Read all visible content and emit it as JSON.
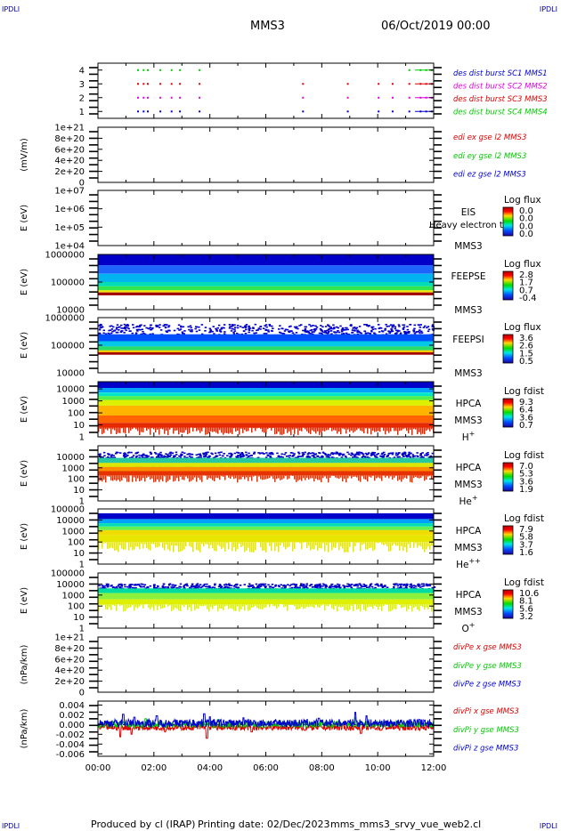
{
  "header": {
    "corner_tl": "IPDLI",
    "corner_tr": "IPDLI",
    "corner_bl": "IPDLI",
    "corner_br": "IPDLI",
    "spacecraft": "MMS3",
    "date": "06/Oct/2019 00:00"
  },
  "footer": {
    "produced": "Produced by cl (IRAP)",
    "printing": "Printing date: 02/Dec/2023",
    "file": "mms_mms3_srvy_vue_web2.cl"
  },
  "colors": {
    "red": "#e00000",
    "green": "#00cc00",
    "blue": "#0000d0",
    "magenta": "#e000e0",
    "dark_red": "#a00000"
  },
  "chart_data": {
    "x_axis": {
      "ticks": [
        "00:00",
        "02:00",
        "04:00",
        "06:00",
        "08:00",
        "10:00",
        "12:00"
      ],
      "range": [
        "00:00",
        "12:00"
      ]
    },
    "panels": [
      {
        "id": "burst",
        "type": "scatter",
        "ylabel": "",
        "yticks": [
          "4",
          "3",
          "2",
          "1"
        ],
        "ylim": [
          0.5,
          4.5
        ],
        "legend": [
          {
            "text": "des dist burst SC1 MMS1",
            "color": "#0000d0"
          },
          {
            "text": "des dist burst SC2 MMS2",
            "color": "#e000e0"
          },
          {
            "text": "des dist burst SC3 MMS3",
            "color": "#e00000"
          },
          {
            "text": "des dist burst SC4 MMS4",
            "color": "#00cc00"
          }
        ],
        "series": [
          {
            "level": 4,
            "color": "#00cc00",
            "times": [
              1.4,
              1.6,
              1.75,
              2.2,
              2.6,
              2.9,
              3.6,
              11.1,
              11.5,
              11.7,
              11.9
            ]
          },
          {
            "level": 3,
            "color": "#e00000",
            "times": [
              1.4,
              1.6,
              1.75,
              2.2,
              2.6,
              2.9,
              3.6,
              7.3,
              8.9,
              10.0,
              10.5,
              11.1,
              11.5,
              11.7,
              11.9
            ]
          },
          {
            "level": 2,
            "color": "#e000e0",
            "times": [
              1.4,
              1.6,
              1.75,
              2.2,
              2.6,
              2.9,
              3.6,
              7.3,
              8.9,
              10.0,
              10.5,
              11.1,
              11.5,
              11.7,
              11.9
            ]
          },
          {
            "level": 1,
            "color": "#0000d0",
            "times": [
              1.4,
              1.6,
              1.75,
              2.2,
              2.6,
              2.9,
              3.6,
              7.3,
              8.9,
              10.0,
              10.5,
              11.1,
              11.5,
              11.7,
              11.9
            ]
          }
        ]
      },
      {
        "id": "edi",
        "type": "line",
        "ylabel": "(mV/m)",
        "yticks": [
          "1e+21",
          "8e+20",
          "6e+20",
          "4e+20",
          "2e+20",
          "0"
        ],
        "ylim": [
          0,
          1e+21
        ],
        "legend": [
          {
            "text": "edi ex gse l2 MMS3",
            "color": "#e00000"
          },
          {
            "text": "edi ey gse l2 MMS3",
            "color": "#00cc00"
          },
          {
            "text": "edi ez gse l2 MMS3",
            "color": "#0000d0"
          }
        ]
      },
      {
        "id": "eis",
        "type": "heatmap",
        "ylabel": "E (eV)",
        "yticks": [
          "1e+07",
          "1e+06",
          "1e+05",
          "1e+04"
        ],
        "ylim": [
          10000,
          10000000
        ],
        "log": true,
        "label_lines": [
          "EIS",
          "",
          "MMS3"
        ],
        "overlay_text": "Heavy electron tof",
        "cbar_title": "Log flux",
        "cbar_ticks": [
          "0.0",
          "0.0",
          "0.0",
          "0.0"
        ],
        "bands": []
      },
      {
        "id": "feepse",
        "type": "heatmap",
        "ylabel": "E (eV)",
        "yticks": [
          "1000000",
          "100000",
          "10000"
        ],
        "ylim": [
          10000,
          1000000
        ],
        "log": true,
        "label_lines": [
          "FEEPSE",
          "",
          "MMS3"
        ],
        "cbar_title": "Log flux",
        "cbar_ticks": [
          "2.8",
          "1.7",
          "0.7",
          "-0.4"
        ],
        "bands": [
          {
            "top": 1000000,
            "bottom": 400000,
            "color": "#0000c8"
          },
          {
            "top": 400000,
            "bottom": 200000,
            "color": "#1e64ff"
          },
          {
            "top": 200000,
            "bottom": 100000,
            "color": "#00b4f0"
          },
          {
            "top": 100000,
            "bottom": 70000,
            "color": "#00dcb4"
          },
          {
            "top": 70000,
            "bottom": 50000,
            "color": "#32e650"
          },
          {
            "top": 50000,
            "bottom": 42000,
            "color": "#f0e600"
          },
          {
            "top": 42000,
            "bottom": 33000,
            "color": "#a00000"
          }
        ]
      },
      {
        "id": "feepsi",
        "type": "heatmap",
        "ylabel": "E (eV)",
        "yticks": [
          "1000000",
          "100000",
          "10000"
        ],
        "ylim": [
          10000,
          1000000
        ],
        "log": true,
        "label_lines": [
          "FEEPSI",
          "",
          "MMS3"
        ],
        "cbar_title": "Log flux",
        "cbar_ticks": [
          "3.6",
          "2.6",
          "1.5",
          "0.5"
        ],
        "bands": [
          {
            "top": 600000,
            "bottom": 250000,
            "color": "#ffffff",
            "speckle": "#0000c8"
          },
          {
            "top": 250000,
            "bottom": 140000,
            "color": "#0050ff"
          },
          {
            "top": 140000,
            "bottom": 90000,
            "color": "#00c8e6"
          },
          {
            "top": 90000,
            "bottom": 65000,
            "color": "#28dc64"
          },
          {
            "top": 65000,
            "bottom": 55000,
            "color": "#ffc800"
          },
          {
            "top": 55000,
            "bottom": 45000,
            "color": "#a00000"
          }
        ]
      },
      {
        "id": "hpca_h",
        "type": "heatmap",
        "ylabel": "E (eV)",
        "yticks": [
          "10000",
          "1000",
          "100",
          "10",
          "1"
        ],
        "ylim": [
          1,
          40000
        ],
        "log": true,
        "label_lines": [
          "HPCA",
          "MMS3",
          "H+"
        ],
        "cbar_title": "Log fdist",
        "cbar_ticks": [
          "9.3",
          "6.4",
          "3.6",
          "0.7"
        ],
        "bands": [
          {
            "top": 40000,
            "bottom": 12000,
            "color": "#0000c8"
          },
          {
            "top": 12000,
            "bottom": 5000,
            "color": "#00a0ff"
          },
          {
            "top": 5000,
            "bottom": 2500,
            "color": "#00e6c8"
          },
          {
            "top": 2500,
            "bottom": 1200,
            "color": "#50f050"
          },
          {
            "top": 1200,
            "bottom": 400,
            "color": "#dcf000"
          },
          {
            "top": 400,
            "bottom": 60,
            "color": "#ffb400"
          },
          {
            "top": 60,
            "bottom": 15,
            "color": "#ff6400"
          },
          {
            "top": 15,
            "bottom": 6,
            "color": "#e62800",
            "ragged": true
          }
        ]
      },
      {
        "id": "hpca_he",
        "type": "heatmap",
        "ylabel": "E (eV)",
        "yticks": [
          "10000",
          "1000",
          "100",
          "10",
          "1"
        ],
        "ylim": [
          1,
          100000
        ],
        "log": true,
        "label_lines": [
          "HPCA",
          "MMS3",
          "He+"
        ],
        "cbar_title": "Log fdist",
        "cbar_ticks": [
          "7.0",
          "5.3",
          "3.6",
          "1.9"
        ],
        "bands": [
          {
            "top": 30000,
            "bottom": 8000,
            "color": "#ffffff",
            "speckle": "#0000c8"
          },
          {
            "top": 8000,
            "bottom": 2800,
            "color": "#28c8a0",
            "ragged": true
          },
          {
            "top": 2800,
            "bottom": 1200,
            "color": "#dce600"
          },
          {
            "top": 1200,
            "bottom": 500,
            "color": "#ff8c00"
          },
          {
            "top": 500,
            "bottom": 200,
            "color": "#e63200",
            "ragged": true
          }
        ]
      },
      {
        "id": "hpca_hepp",
        "type": "heatmap",
        "ylabel": "E (eV)",
        "yticks": [
          "100000",
          "10000",
          "1000",
          "100",
          "10",
          "1"
        ],
        "ylim": [
          1,
          100000
        ],
        "log": true,
        "label_lines": [
          "HPCA",
          "MMS3",
          "He++"
        ],
        "cbar_title": "Log fdist",
        "cbar_ticks": [
          "7.9",
          "5.8",
          "3.7",
          "1.6"
        ],
        "bands": [
          {
            "top": 40000,
            "bottom": 12000,
            "color": "#0000c8"
          },
          {
            "top": 12000,
            "bottom": 5000,
            "color": "#00a0ff"
          },
          {
            "top": 5000,
            "bottom": 2500,
            "color": "#00dcb4"
          },
          {
            "top": 2500,
            "bottom": 1200,
            "color": "#64f050"
          },
          {
            "top": 1200,
            "bottom": 400,
            "color": "#f0dc00"
          },
          {
            "top": 400,
            "bottom": 100,
            "color": "#e6e600",
            "ragged": true
          }
        ]
      },
      {
        "id": "hpca_o",
        "type": "heatmap",
        "ylabel": "E (eV)",
        "yticks": [
          "100000",
          "10000",
          "1000",
          "100",
          "10",
          "1"
        ],
        "ylim": [
          1,
          100000
        ],
        "log": true,
        "label_lines": [
          "HPCA",
          "MMS3",
          "O+"
        ],
        "cbar_title": "Log fdist",
        "cbar_ticks": [
          "10.6",
          "8.1",
          "5.6",
          "3.2"
        ],
        "bands": [
          {
            "top": 12000,
            "bottom": 4000,
            "color": "#ffffff",
            "speckle": "#0000c8"
          },
          {
            "top": 4000,
            "bottom": 1500,
            "color": "#00dca0"
          },
          {
            "top": 1500,
            "bottom": 400,
            "color": "#8cf03c"
          },
          {
            "top": 400,
            "bottom": 150,
            "color": "#dcf000",
            "ragged": true
          }
        ]
      },
      {
        "id": "divpe",
        "type": "line",
        "ylabel": "(nPa/km)",
        "yticks": [
          "1e+21",
          "8e+20",
          "6e+20",
          "4e+20",
          "2e+20",
          "0"
        ],
        "ylim": [
          0,
          1e+21
        ],
        "legend": [
          {
            "text": "divPe x gse MMS3",
            "color": "#e00000"
          },
          {
            "text": "divPe y gse MMS3",
            "color": "#00cc00"
          },
          {
            "text": "divPe z gse MMS3",
            "color": "#0000d0"
          }
        ]
      },
      {
        "id": "divpi",
        "type": "line",
        "ylabel": "(nPa/km)",
        "yticks": [
          "0.004",
          "0.002",
          "0.000",
          "-0.002",
          "-0.004",
          "-0.006"
        ],
        "ylim": [
          -0.0065,
          0.0048
        ],
        "legend": [
          {
            "text": "divPi x gse MMS3",
            "color": "#e00000"
          },
          {
            "text": "divPi y gse MMS3",
            "color": "#00cc00"
          },
          {
            "text": "divPi z gse MMS3",
            "color": "#0000d0"
          }
        ],
        "series": [
          {
            "name": "divPi x gse MMS3",
            "color": "#e00000",
            "base": -0.0006,
            "noise": 0.0006,
            "spikes": [
              [
                0.8,
                -0.0025
              ],
              [
                1.2,
                -0.002
              ],
              [
                2.4,
                -0.0015
              ],
              [
                3.9,
                -0.0028
              ],
              [
                5.5,
                -0.0015
              ],
              [
                7.4,
                -0.0012
              ],
              [
                9.4,
                -0.0018
              ],
              [
                10.1,
                -0.0012
              ]
            ]
          },
          {
            "name": "divPi y gse MMS3",
            "color": "#00cc00",
            "base": 0.0,
            "noise": 0.0007,
            "spikes": [
              [
                1.7,
                0.0012
              ],
              [
                4.3,
                0.001
              ],
              [
                6.5,
                0.0008
              ],
              [
                9.2,
                0.0014
              ]
            ]
          },
          {
            "name": "divPi z gse MMS3",
            "color": "#0000d0",
            "base": 0.0003,
            "noise": 0.0008,
            "spikes": [
              [
                0.9,
                0.0021
              ],
              [
                1.3,
                0.0015
              ],
              [
                2.1,
                0.0018
              ],
              [
                3.8,
                0.0022
              ],
              [
                4.0,
                0.0016
              ],
              [
                5.2,
                0.0014
              ],
              [
                7.9,
                0.0013
              ],
              [
                9.2,
                0.0025
              ],
              [
                9.6,
                0.0018
              ],
              [
                11.5,
                0.001
              ]
            ]
          }
        ]
      }
    ]
  }
}
